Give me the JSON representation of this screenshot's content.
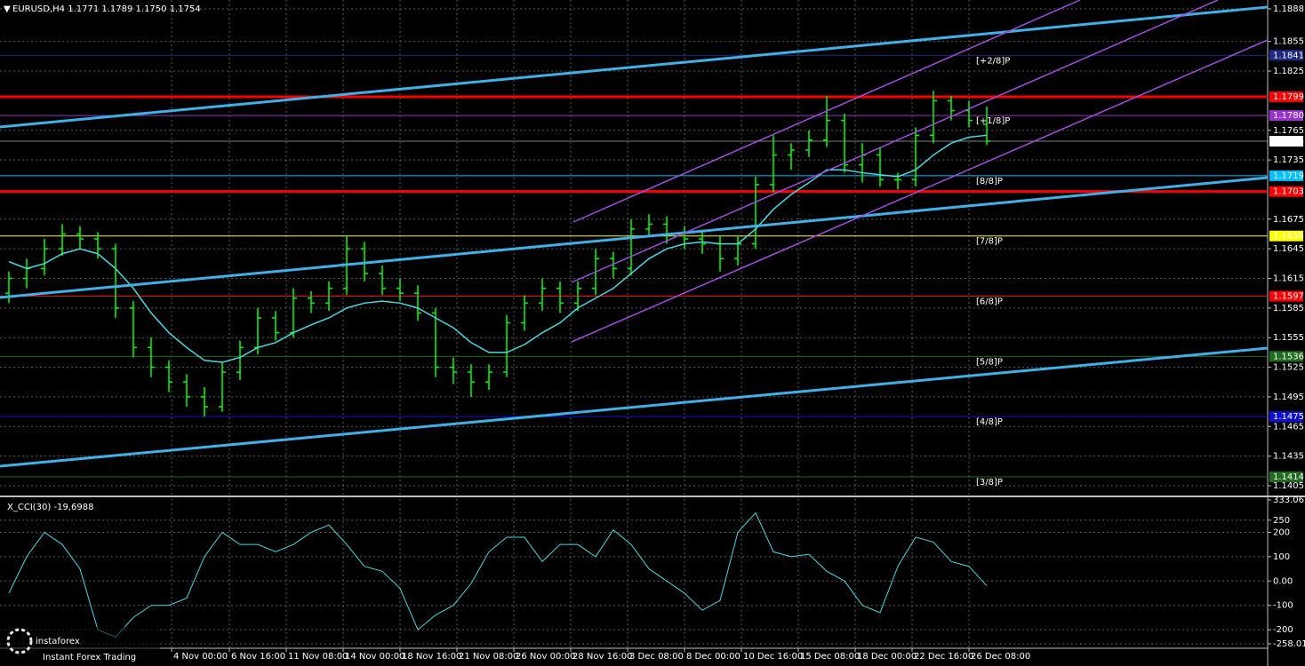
{
  "chart_data": [
    {
      "type": "ohlc",
      "title": "EURUSD,H4  1.1771 1.1789 1.1750 1.1754",
      "color": "#00ff00",
      "grid": true,
      "ylim": [
        1.1396,
        1.1897
      ],
      "yticks": [
        1.1888,
        1.1855,
        1.1825,
        1.1765,
        1.1735,
        1.1675,
        1.1645,
        1.1615,
        1.1585,
        1.1555,
        1.1525,
        1.1495,
        1.1465,
        1.1435,
        1.1405
      ],
      "xticks": [
        {
          "value": 9.15,
          "label": "4 Nov 00:00"
        },
        {
          "value": 12.4,
          "label": "6 Nov 16:00"
        },
        {
          "value": 15.6,
          "label": "11 Nov 08:00"
        },
        {
          "value": 18.8,
          "label": "14 Nov 00:00"
        },
        {
          "value": 22,
          "label": "18 Nov 16:00"
        },
        {
          "value": 25.2,
          "label": "21 Nov 08:00"
        },
        {
          "value": 28.4,
          "label": "26 Nov 00:00"
        },
        {
          "value": 31.6,
          "label": "28 Nov 16:00"
        },
        {
          "value": 34.8,
          "label": "3 Dec 08:00"
        },
        {
          "value": 38,
          "label": "8 Dec 00:00"
        },
        {
          "value": 41.2,
          "label": "10 Dec 16:00"
        },
        {
          "value": 44.4,
          "label": "15 Dec 08:00"
        },
        {
          "value": 47.6,
          "label": "18 Dec 00:00"
        },
        {
          "value": 50.8,
          "label": "22 Dec 16:00"
        },
        {
          "value": 54,
          "label": "26 Dec 08:00"
        }
      ],
      "open": [
        1.16,
        1.1615,
        1.1625,
        1.1645,
        1.166,
        1.1655,
        1.1645,
        1.1585,
        1.1545,
        1.1525,
        1.151,
        1.1495,
        1.1485,
        1.152,
        1.1545,
        1.1575,
        1.156,
        1.1595,
        1.159,
        1.1605,
        1.1645,
        1.162,
        1.1605,
        1.16,
        1.158,
        1.1525,
        1.152,
        1.151,
        1.152,
        1.157,
        1.159,
        1.1605,
        1.159,
        1.1605,
        1.1635,
        1.1625,
        1.1665,
        1.167,
        1.166,
        1.1655,
        1.165,
        1.1635,
        1.165,
        1.171,
        1.174,
        1.1745,
        1.1755,
        1.1775,
        1.173,
        1.174,
        1.1715,
        1.1715,
        1.176,
        1.1795,
        1.1785,
        1.1771
      ],
      "high": [
        1.1622,
        1.1635,
        1.1655,
        1.167,
        1.1668,
        1.1662,
        1.165,
        1.1592,
        1.1555,
        1.1532,
        1.1518,
        1.1505,
        1.153,
        1.1552,
        1.1585,
        1.1582,
        1.1605,
        1.1602,
        1.1612,
        1.1658,
        1.1652,
        1.1628,
        1.1615,
        1.1608,
        1.1585,
        1.1535,
        1.1528,
        1.1528,
        1.1578,
        1.1598,
        1.1615,
        1.1612,
        1.1612,
        1.1645,
        1.1642,
        1.1675,
        1.168,
        1.1678,
        1.1668,
        1.1662,
        1.1658,
        1.1658,
        1.1718,
        1.176,
        1.1752,
        1.1765,
        1.18,
        1.1782,
        1.1752,
        1.1748,
        1.1722,
        1.1768,
        1.1805,
        1.18,
        1.1795,
        1.1789
      ],
      "low": [
        1.159,
        1.1605,
        1.1618,
        1.1638,
        1.1645,
        1.1635,
        1.1575,
        1.1535,
        1.1515,
        1.15,
        1.1485,
        1.1475,
        1.148,
        1.1512,
        1.1538,
        1.1552,
        1.1555,
        1.158,
        1.1582,
        1.1598,
        1.1612,
        1.1598,
        1.1592,
        1.1572,
        1.1515,
        1.1508,
        1.1495,
        1.1502,
        1.1515,
        1.1562,
        1.1582,
        1.158,
        1.1582,
        1.1598,
        1.1615,
        1.1618,
        1.1658,
        1.165,
        1.1645,
        1.164,
        1.1622,
        1.1628,
        1.1645,
        1.1702,
        1.1725,
        1.1738,
        1.1748,
        1.1722,
        1.1712,
        1.1708,
        1.1705,
        1.1708,
        1.1752,
        1.1775,
        1.1768,
        1.175
      ],
      "close": [
        1.1615,
        1.1625,
        1.1645,
        1.166,
        1.1655,
        1.1645,
        1.1585,
        1.1545,
        1.1525,
        1.151,
        1.1495,
        1.1485,
        1.152,
        1.1545,
        1.1575,
        1.156,
        1.1595,
        1.159,
        1.1605,
        1.1645,
        1.162,
        1.1605,
        1.16,
        1.158,
        1.1525,
        1.152,
        1.151,
        1.152,
        1.157,
        1.159,
        1.1605,
        1.159,
        1.1605,
        1.1635,
        1.1625,
        1.1665,
        1.167,
        1.166,
        1.1655,
        1.165,
        1.1635,
        1.165,
        1.171,
        1.174,
        1.1745,
        1.1755,
        1.1775,
        1.173,
        1.174,
        1.1715,
        1.1715,
        1.176,
        1.1795,
        1.1785,
        1.1775,
        1.1754
      ],
      "ma": {
        "color": "#4dd8e0",
        "values": [
          1.1632,
          1.1625,
          1.163,
          1.164,
          1.1645,
          1.164,
          1.1625,
          1.1605,
          1.158,
          1.156,
          1.1545,
          1.1532,
          1.153,
          1.1535,
          1.1545,
          1.155,
          1.156,
          1.1568,
          1.1575,
          1.1585,
          1.159,
          1.1592,
          1.159,
          1.1585,
          1.1575,
          1.1565,
          1.155,
          1.154,
          1.154,
          1.1548,
          1.156,
          1.157,
          1.1585,
          1.1595,
          1.1605,
          1.162,
          1.1635,
          1.1645,
          1.165,
          1.1652,
          1.165,
          1.165,
          1.1665,
          1.1685,
          1.17,
          1.1712,
          1.1725,
          1.1725,
          1.1722,
          1.172,
          1.1718,
          1.1725,
          1.174,
          1.1752,
          1.1758,
          1.176
        ]
      },
      "levels": [
        {
          "value": 1.1841,
          "color": "#1c2a80",
          "text_color": "#5a6aa8",
          "width": 1,
          "murray": "[+2/8]P"
        },
        {
          "value": 1.1799,
          "color": "#ff0000",
          "text_color": "#ffffff",
          "width": 3
        },
        {
          "value": 1.178,
          "label": "1.1780",
          "color": "#9932cc",
          "text_color": "#ffffff",
          "width": 1,
          "murray": "[+1/8]P"
        },
        {
          "value": 1.1754,
          "color": "#ffffff",
          "text_color": "#000000",
          "width": 1
        },
        {
          "value": 1.1719,
          "color": "#00bfff",
          "text_color": "#000000",
          "width": 1,
          "murray": "[8/8]P"
        },
        {
          "value": 1.1703,
          "color": "#ff0000",
          "text_color": "#ffffff",
          "width": 3
        },
        {
          "value": 1.1658,
          "color": "#ffff00",
          "text_color": "#000000",
          "width": 1,
          "murray": "[7/8]P"
        },
        {
          "value": 1.1597,
          "color": "#ff0000",
          "text_color": "#ffffff",
          "width": 1,
          "murray": "[6/8]P"
        },
        {
          "value": 1.1536,
          "color": "#1f6b1f",
          "text_color": "#9aa89a",
          "width": 1,
          "murray": "[5/8]P"
        },
        {
          "value": 1.1475,
          "color": "#1010d0",
          "text_color": "#7a7aff",
          "width": 1,
          "murray": "[4/8]P"
        },
        {
          "value": 1.1414,
          "color": "#1f6b1f",
          "text_color": "#9aa89a",
          "width": 1,
          "murray": "[3/8]P"
        }
      ]
    },
    {
      "type": "line",
      "title": "X_CCI(30) -19,6988",
      "color": "#4dd8e0",
      "grid": true,
      "ylim": [
        -258.013,
        333.061
      ],
      "yticks": [
        333.061,
        250,
        200,
        100,
        {
          "value": 0,
          "label": "0.00"
        },
        -100,
        -200,
        -258.013
      ],
      "values": [
        -50,
        100,
        200,
        150,
        50,
        -200,
        -230,
        -150,
        -100,
        -100,
        -70,
        100,
        200,
        150,
        150,
        120,
        150,
        200,
        230,
        150,
        60,
        40,
        -30,
        -200,
        -140,
        -100,
        -10,
        120,
        180,
        180,
        80,
        150,
        150,
        100,
        210,
        150,
        50,
        0,
        -50,
        -120,
        -80,
        200,
        280,
        120,
        100,
        110,
        40,
        0,
        -100,
        -130,
        60,
        180,
        160,
        80,
        60,
        -19.6988
      ]
    }
  ],
  "brand": {
    "name": "instaforex",
    "tagline": "Instant Forex Trading"
  }
}
